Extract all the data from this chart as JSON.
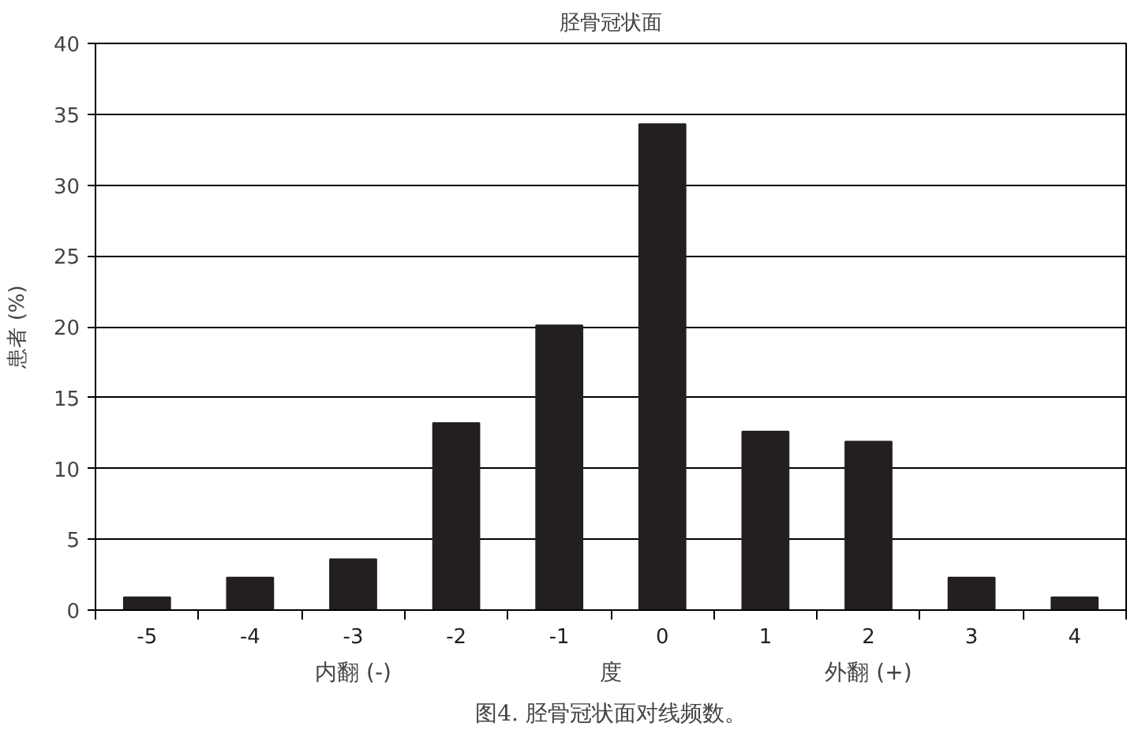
{
  "chart_data": {
    "type": "bar",
    "title": "胫骨冠状面",
    "xlabel": "度",
    "ylabel": "患者 (%)",
    "categories": [
      "-5",
      "-4",
      "-3",
      "-2",
      "-1",
      "0",
      "1",
      "2",
      "3",
      "4"
    ],
    "values": [
      0.9,
      2.3,
      3.6,
      13.2,
      20.1,
      34.3,
      12.6,
      11.9,
      2.3,
      0.9
    ],
    "color": "#231f20",
    "ylim": [
      0,
      40
    ],
    "yticks": [
      0,
      5,
      10,
      15,
      20,
      25,
      30,
      35,
      40
    ],
    "grid": "y",
    "annotations": [
      "内翻 (-)",
      "外翻 (+)",
      "图4. 胫骨冠状面对线频数。"
    ]
  }
}
